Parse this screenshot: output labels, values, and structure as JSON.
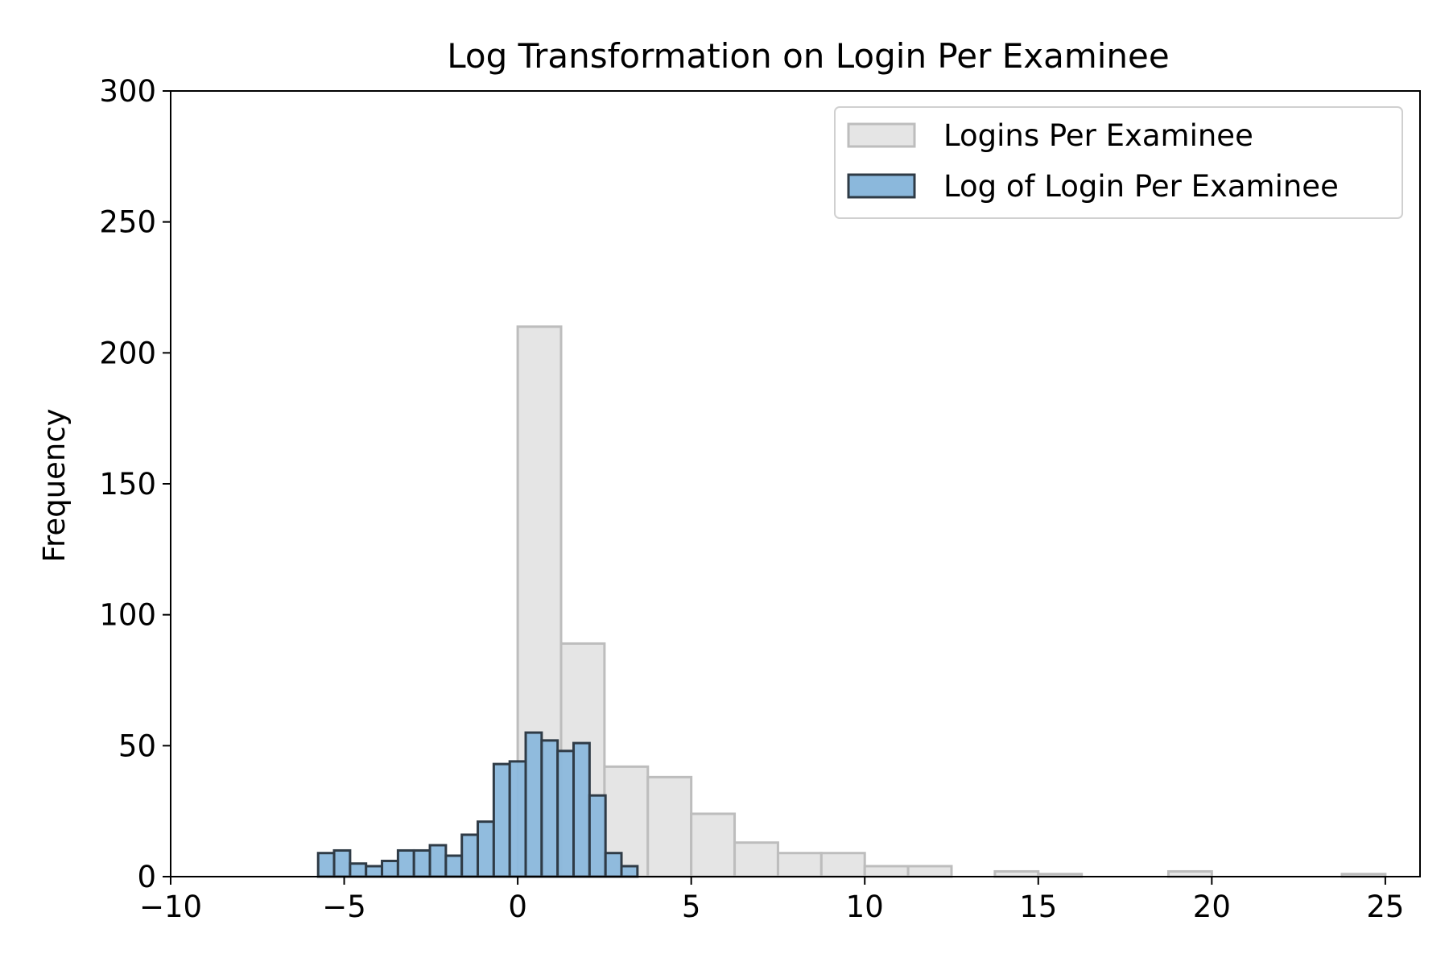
{
  "chart_data": {
    "type": "bar",
    "title": "Log Transformation on Login Per Examinee",
    "xlabel": "",
    "ylabel": "Frequency",
    "xlim": [
      -10,
      26
    ],
    "ylim": [
      0,
      300
    ],
    "xticks": [
      -10,
      -5,
      0,
      5,
      10,
      15,
      20,
      25
    ],
    "xtick_labels": [
      "−10",
      "−5",
      "0",
      "5",
      "10",
      "15",
      "20",
      "25"
    ],
    "yticks": [
      0,
      50,
      100,
      150,
      200,
      250,
      300
    ],
    "ytick_labels": [
      "0",
      "50",
      "100",
      "150",
      "200",
      "250",
      "300"
    ],
    "grid": false,
    "legend_position": "top-right",
    "series": [
      {
        "name": "Logins Per Examinee",
        "color": "#e5e5e5",
        "edge_color": "#bdbdbd",
        "bin_edges": [
          0.0,
          1.25,
          2.5,
          3.75,
          5.0,
          6.25,
          7.5,
          8.75,
          10.0,
          11.25,
          12.5,
          13.75,
          15.0,
          16.25,
          17.5,
          18.75,
          20.0,
          21.25,
          22.5,
          23.75,
          25.0
        ],
        "counts": [
          210,
          89,
          42,
          38,
          24,
          13,
          9,
          9,
          4,
          4,
          0,
          2,
          1,
          0,
          0,
          2,
          0,
          0,
          0,
          1
        ]
      },
      {
        "name": "Log of Login Per Examinee",
        "color": "#8bb8dc",
        "edge_color": "#2f3b46",
        "bin_edges": [
          -5.75,
          -5.29,
          -4.83,
          -4.37,
          -3.91,
          -3.45,
          -2.99,
          -2.53,
          -2.07,
          -1.61,
          -1.15,
          -0.69,
          -0.23,
          0.23,
          0.69,
          1.15,
          1.61,
          2.07,
          2.53,
          2.99,
          3.45
        ],
        "counts": [
          9,
          10,
          5,
          4,
          6,
          10,
          10,
          12,
          8,
          16,
          21,
          43,
          44,
          55,
          52,
          48,
          51,
          31,
          9,
          4
        ]
      }
    ]
  }
}
